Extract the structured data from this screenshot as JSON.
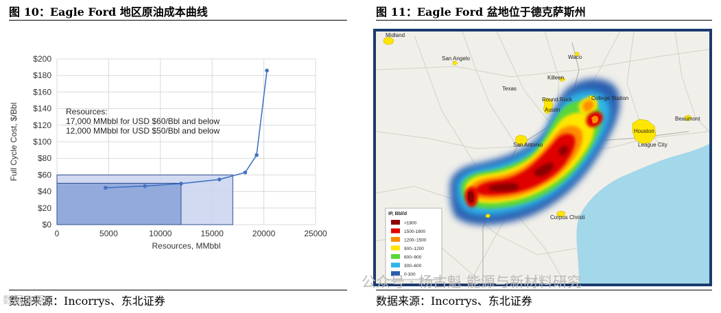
{
  "left_figure": {
    "title": "图 10：Eagle Ford 地区原油成本曲线",
    "source": "数据来源：Incorrys、东北证券"
  },
  "right_figure": {
    "title": "图 11：Eagle Ford  盆地位于德克萨斯州",
    "source": "数据来源：Incorrys、东北证券"
  },
  "watermark": "公众号 · 杨古魁 能源与新材料研究",
  "watermark_corner": "数据来源：",
  "chart_data": {
    "type": "line",
    "xlabel": "Resources, MMbbl",
    "ylabel": "Full Cycle Cost, $/Bbl",
    "xlim": [
      0,
      25000
    ],
    "ylim": [
      0,
      200
    ],
    "x_ticks": [
      "0",
      "5000",
      "10000",
      "15000",
      "20000",
      "25000"
    ],
    "y_ticks": [
      "$0",
      "$20",
      "$40",
      "$60",
      "$80",
      "$100",
      "$120",
      "$140",
      "$160",
      "$180",
      "$200"
    ],
    "grid": true,
    "series": [
      {
        "x": [
          4700,
          8500,
          12000,
          15700,
          18200,
          19300,
          20300
        ],
        "y": [
          44.5,
          46.5,
          49.5,
          54.5,
          63,
          84,
          186
        ]
      }
    ],
    "shaded_regions": [
      {
        "x": [
          0,
          17000
        ],
        "y": [
          0,
          60
        ],
        "label": "USD $60/Bbl and below"
      },
      {
        "x": [
          0,
          12000
        ],
        "y": [
          0,
          50
        ],
        "label": "USD $50/Bbl and below"
      }
    ],
    "annotation": {
      "lines": [
        "Resources:",
        "17,000 MMbbl for USD $60/Bbl and below",
        "12,000 MMbbl for USD $50/Bbl and below"
      ]
    },
    "colors": {
      "line": "#4472c4",
      "outer_fill": "#c9d4ee",
      "inner_fill": "#7e9bd4",
      "border": "#2f4f8f"
    }
  },
  "map": {
    "cities": [
      {
        "name": "Midland"
      },
      {
        "name": "San Angelo"
      },
      {
        "name": "Waco"
      },
      {
        "name": "Killeen"
      },
      {
        "name": "Texas"
      },
      {
        "name": "Round Rock"
      },
      {
        "name": "College Station"
      },
      {
        "name": "Austin"
      },
      {
        "name": "Beaumont"
      },
      {
        "name": "San Antonio"
      },
      {
        "name": "Houston"
      },
      {
        "name": "League City"
      },
      {
        "name": "Corpus Christi"
      }
    ],
    "legend": {
      "title": "IP, Bbl/d",
      "items": [
        {
          "label": ">1800",
          "color": "#8b0000"
        },
        {
          "label": "1500-1800",
          "color": "#e00000"
        },
        {
          "label": "1200–1500",
          "color": "#ff8c00"
        },
        {
          "label": "900–1200",
          "color": "#ffe600"
        },
        {
          "label": "600–900",
          "color": "#5ad63c"
        },
        {
          "label": "300–600",
          "color": "#2fb5e8"
        },
        {
          "label": "0-300",
          "color": "#2a5fb0"
        }
      ]
    }
  }
}
